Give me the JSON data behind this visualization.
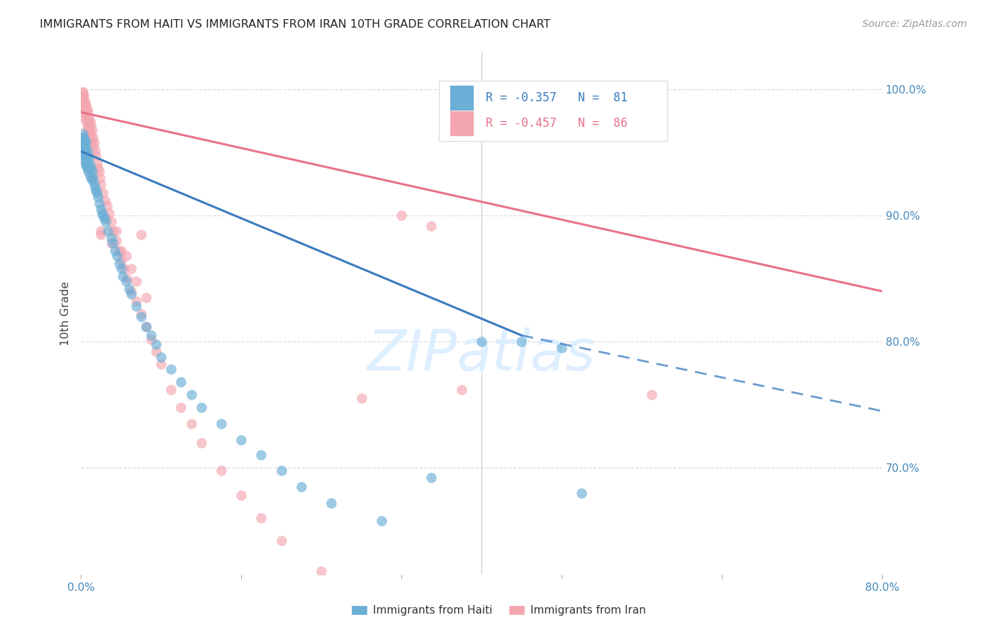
{
  "title": "IMMIGRANTS FROM HAITI VS IMMIGRANTS FROM IRAN 10TH GRADE CORRELATION CHART",
  "source": "Source: ZipAtlas.com",
  "ylabel": "10th Grade",
  "xlim": [
    0.0,
    0.8
  ],
  "ylim": [
    0.615,
    1.03
  ],
  "color_haiti": "#6baed6",
  "color_iran": "#f4a6b0",
  "color_haiti_line": "#3a7bbf",
  "color_iran_line": "#e8728a",
  "color_watermark": "#ddeeff",
  "background_color": "#ffffff",
  "grid_color": "#dddddd",
  "axis_color": "#4488bb",
  "haiti_R": "-0.357",
  "haiti_N": "81",
  "iran_R": "-0.457",
  "iran_N": "86",
  "legend_label_haiti": "Immigrants from Haiti",
  "legend_label_iran": "Immigrants from Iran",
  "haiti_trend": [
    0.0,
    0.8,
    0.951,
    0.795
  ],
  "iran_trend": [
    0.0,
    0.8,
    0.982,
    0.84
  ],
  "haiti_dash": [
    0.44,
    0.8,
    0.805,
    0.745
  ],
  "haiti_x": [
    0.001,
    0.001,
    0.001,
    0.001,
    0.002,
    0.002,
    0.002,
    0.002,
    0.002,
    0.003,
    0.003,
    0.003,
    0.003,
    0.003,
    0.004,
    0.004,
    0.004,
    0.004,
    0.005,
    0.005,
    0.005,
    0.005,
    0.006,
    0.006,
    0.006,
    0.007,
    0.007,
    0.007,
    0.008,
    0.008,
    0.009,
    0.009,
    0.01,
    0.01,
    0.011,
    0.011,
    0.012,
    0.013,
    0.014,
    0.015,
    0.016,
    0.017,
    0.018,
    0.02,
    0.021,
    0.022,
    0.023,
    0.025,
    0.027,
    0.03,
    0.032,
    0.034,
    0.036,
    0.038,
    0.04,
    0.042,
    0.045,
    0.048,
    0.05,
    0.055,
    0.06,
    0.065,
    0.07,
    0.075,
    0.08,
    0.09,
    0.1,
    0.11,
    0.12,
    0.14,
    0.16,
    0.18,
    0.2,
    0.22,
    0.25,
    0.3,
    0.35,
    0.4,
    0.44,
    0.48,
    0.5
  ],
  "haiti_y": [
    0.96,
    0.958,
    0.962,
    0.955,
    0.965,
    0.958,
    0.96,
    0.952,
    0.948,
    0.962,
    0.958,
    0.955,
    0.95,
    0.945,
    0.96,
    0.955,
    0.948,
    0.942,
    0.958,
    0.95,
    0.945,
    0.94,
    0.952,
    0.945,
    0.938,
    0.948,
    0.94,
    0.935,
    0.945,
    0.938,
    0.94,
    0.932,
    0.938,
    0.93,
    0.935,
    0.928,
    0.93,
    0.925,
    0.922,
    0.92,
    0.918,
    0.915,
    0.91,
    0.905,
    0.902,
    0.9,
    0.898,
    0.895,
    0.888,
    0.882,
    0.878,
    0.872,
    0.868,
    0.862,
    0.858,
    0.852,
    0.848,
    0.842,
    0.838,
    0.828,
    0.82,
    0.812,
    0.805,
    0.798,
    0.788,
    0.778,
    0.768,
    0.758,
    0.748,
    0.735,
    0.722,
    0.71,
    0.698,
    0.685,
    0.672,
    0.658,
    0.692,
    0.8,
    0.8,
    0.795,
    0.68
  ],
  "iran_x": [
    0.001,
    0.001,
    0.001,
    0.002,
    0.002,
    0.002,
    0.002,
    0.003,
    0.003,
    0.003,
    0.003,
    0.004,
    0.004,
    0.004,
    0.005,
    0.005,
    0.005,
    0.006,
    0.006,
    0.006,
    0.007,
    0.007,
    0.007,
    0.008,
    0.008,
    0.008,
    0.009,
    0.009,
    0.01,
    0.01,
    0.01,
    0.011,
    0.011,
    0.012,
    0.012,
    0.013,
    0.014,
    0.015,
    0.016,
    0.017,
    0.018,
    0.019,
    0.02,
    0.022,
    0.024,
    0.026,
    0.028,
    0.03,
    0.032,
    0.035,
    0.038,
    0.04,
    0.043,
    0.046,
    0.05,
    0.055,
    0.06,
    0.065,
    0.07,
    0.075,
    0.08,
    0.09,
    0.1,
    0.11,
    0.12,
    0.14,
    0.16,
    0.18,
    0.2,
    0.24,
    0.28,
    0.32,
    0.35,
    0.38,
    0.06,
    0.02,
    0.03,
    0.04,
    0.025,
    0.035,
    0.045,
    0.05,
    0.055,
    0.065,
    0.57,
    0.02
  ],
  "iran_y": [
    0.998,
    0.995,
    0.992,
    0.998,
    0.995,
    0.99,
    0.985,
    0.995,
    0.992,
    0.988,
    0.982,
    0.99,
    0.985,
    0.978,
    0.988,
    0.982,
    0.975,
    0.985,
    0.978,
    0.97,
    0.982,
    0.975,
    0.968,
    0.978,
    0.972,
    0.965,
    0.975,
    0.968,
    0.972,
    0.965,
    0.958,
    0.968,
    0.96,
    0.962,
    0.955,
    0.958,
    0.952,
    0.948,
    0.942,
    0.938,
    0.935,
    0.93,
    0.925,
    0.918,
    0.912,
    0.908,
    0.902,
    0.895,
    0.888,
    0.88,
    0.872,
    0.865,
    0.858,
    0.85,
    0.84,
    0.832,
    0.822,
    0.812,
    0.802,
    0.792,
    0.782,
    0.762,
    0.748,
    0.735,
    0.72,
    0.698,
    0.678,
    0.66,
    0.642,
    0.618,
    0.755,
    0.9,
    0.892,
    0.762,
    0.885,
    0.885,
    0.878,
    0.872,
    0.898,
    0.888,
    0.868,
    0.858,
    0.848,
    0.835,
    0.758,
    0.888
  ]
}
